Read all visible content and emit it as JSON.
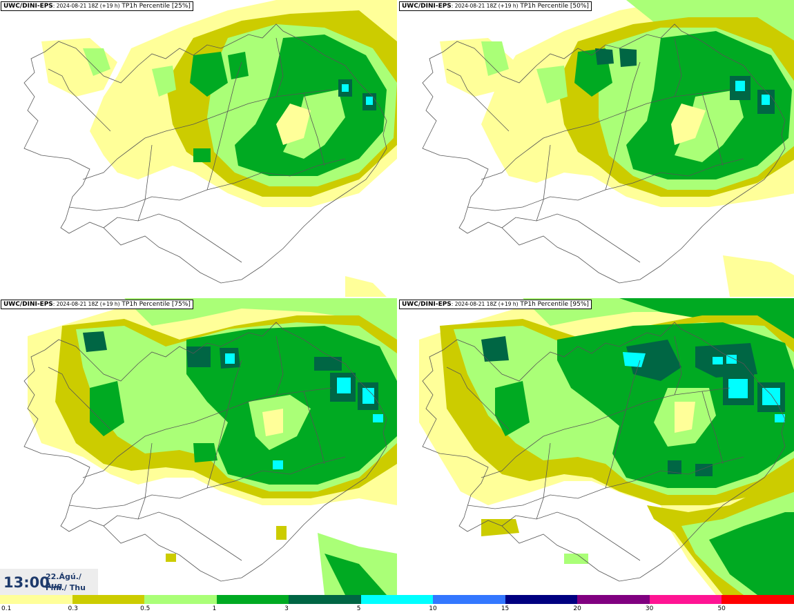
{
  "panels": [
    {
      "source": "UWC/DINI-EPS",
      "run": ": 2024-08-21 18Z (+19 h)",
      "product": " TP1h Percentile [25%]"
    },
    {
      "source": "UWC/DINI-EPS",
      "run": ": 2024-08-21 18Z (+19 h)",
      "product": " TP1h Percentile [50%]"
    },
    {
      "source": "UWC/DINI-EPS",
      "run": ": 2024-08-21 18Z (+19 h)",
      "product": " TP1h Percentile [75%]"
    },
    {
      "source": "UWC/DINI-EPS",
      "run": ": 2024-08-21 18Z (+19 h)",
      "product": " TP1h Percentile [95%]"
    }
  ],
  "valid_time": {
    "time": "13:00",
    "date": "22.Ágú./ Aug",
    "day": "Fim./ Thu"
  },
  "legend": {
    "labels": [
      "0.1",
      "0.3",
      "0.5",
      "1",
      "3",
      "5",
      "10",
      "15",
      "20",
      "30",
      "50"
    ],
    "colors": [
      "#ffff99",
      "#cccc00",
      "#aaff77",
      "#00aa22",
      "#006644",
      "#00ffff",
      "#3377ff",
      "#000080",
      "#800080",
      "#ff1493",
      "#ff0000"
    ]
  },
  "map_colors": {
    "c1": "#ffff99",
    "c2": "#cccc00",
    "c3": "#aaff77",
    "c4": "#00aa22",
    "c5": "#006644",
    "c6": "#00ffff",
    "outline": "#555555",
    "land": "#ffffff"
  }
}
